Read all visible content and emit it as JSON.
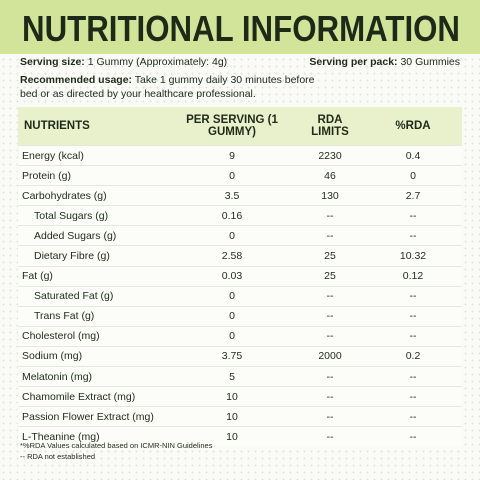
{
  "header": {
    "title": "NUTRITIONAL INFORMATION"
  },
  "serving": {
    "size_label": "Serving size:",
    "size_value": "1 Gummy (Approximately: 4g)",
    "pack_label": "Serving per pack:",
    "pack_value": "30 Gummies"
  },
  "usage": {
    "label": "Recommended usage:",
    "text": "Take 1 gummy daily 30 minutes before bed or as directed by your healthcare professional."
  },
  "table": {
    "columns": [
      "NUTRIENTS",
      "PER SERVING (1 GUMMY)",
      "RDA LIMITS",
      "%RDA"
    ],
    "rows": [
      {
        "cells": [
          "Energy (kcal)",
          "9",
          "2230",
          "0.4"
        ]
      },
      {
        "cells": [
          "Protein (g)",
          "0",
          "46",
          "0"
        ]
      },
      {
        "cells": [
          "Carbohydrates (g)",
          "3.5",
          "130",
          "2.7"
        ],
        "children": [
          {
            "cells": [
              "Total Sugars (g)",
              "0.16",
              "--",
              "--"
            ]
          },
          {
            "cells": [
              "Added Sugars (g)",
              "0",
              "--",
              "--"
            ]
          },
          {
            "cells": [
              "Dietary Fibre (g)",
              "2.58",
              "25",
              "10.32"
            ]
          }
        ]
      },
      {
        "cells": [
          "Fat (g)",
          "0.03",
          "25",
          "0.12"
        ],
        "children": [
          {
            "cells": [
              "Saturated Fat (g)",
              "0",
              "--",
              "--"
            ]
          },
          {
            "cells": [
              "Trans Fat (g)",
              "0",
              "--",
              "--"
            ]
          }
        ]
      },
      {
        "cells": [
          "Cholesterol (mg)",
          "0",
          "--",
          "--"
        ]
      },
      {
        "cells": [
          "Sodium (mg)",
          "3.75",
          "2000",
          "0.2"
        ]
      },
      {
        "cells": [
          "Melatonin (mg)",
          "5",
          "--",
          "--"
        ]
      },
      {
        "cells": [
          "Chamomile Extract (mg)",
          "10",
          "--",
          "--"
        ]
      },
      {
        "cells": [
          "Passion Flower Extract (mg)",
          "10",
          "--",
          "--"
        ]
      },
      {
        "cells": [
          "L-Theanine (mg)",
          "10",
          "--",
          "--"
        ]
      }
    ]
  },
  "footnotes": [
    "*%RDA Values calculated based on ICMR-NIN Guidelines",
    "-- RDA not established"
  ]
}
